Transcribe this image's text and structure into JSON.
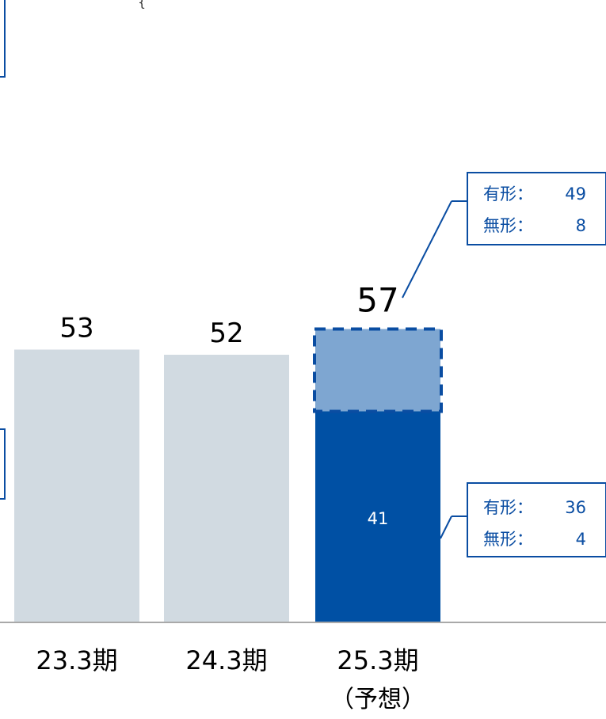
{
  "chart_data": {
    "type": "bar",
    "categories": [
      "23.3期",
      "24.3期",
      "25.3期"
    ],
    "category_sublabels": [
      "",
      "",
      "（予想）"
    ],
    "series": [
      {
        "values": [
          53,
          52,
          41
        ]
      },
      {
        "values": [
          0,
          0,
          16
        ]
      }
    ],
    "totals": [
      53,
      52,
      57
    ],
    "inner_labels": [
      "",
      "",
      "41"
    ],
    "ylim": [
      0,
      70
    ],
    "grid": false,
    "colors": {
      "past": "#d1dae1",
      "current": "#0050a4",
      "forecast": "#7ea6d1",
      "forecast_border": "#0a4da2",
      "callout": "#0a4da2",
      "axis": "#a9a9a9",
      "text": "#000000"
    },
    "callouts": [
      {
        "lines": [
          {
            "label": "有形：",
            "value": "49"
          },
          {
            "label": "無形：",
            "value": "8"
          }
        ]
      },
      {
        "lines": [
          {
            "label": "有形：",
            "value": "36"
          },
          {
            "label": "無形：",
            "value": "4"
          }
        ]
      }
    ]
  }
}
